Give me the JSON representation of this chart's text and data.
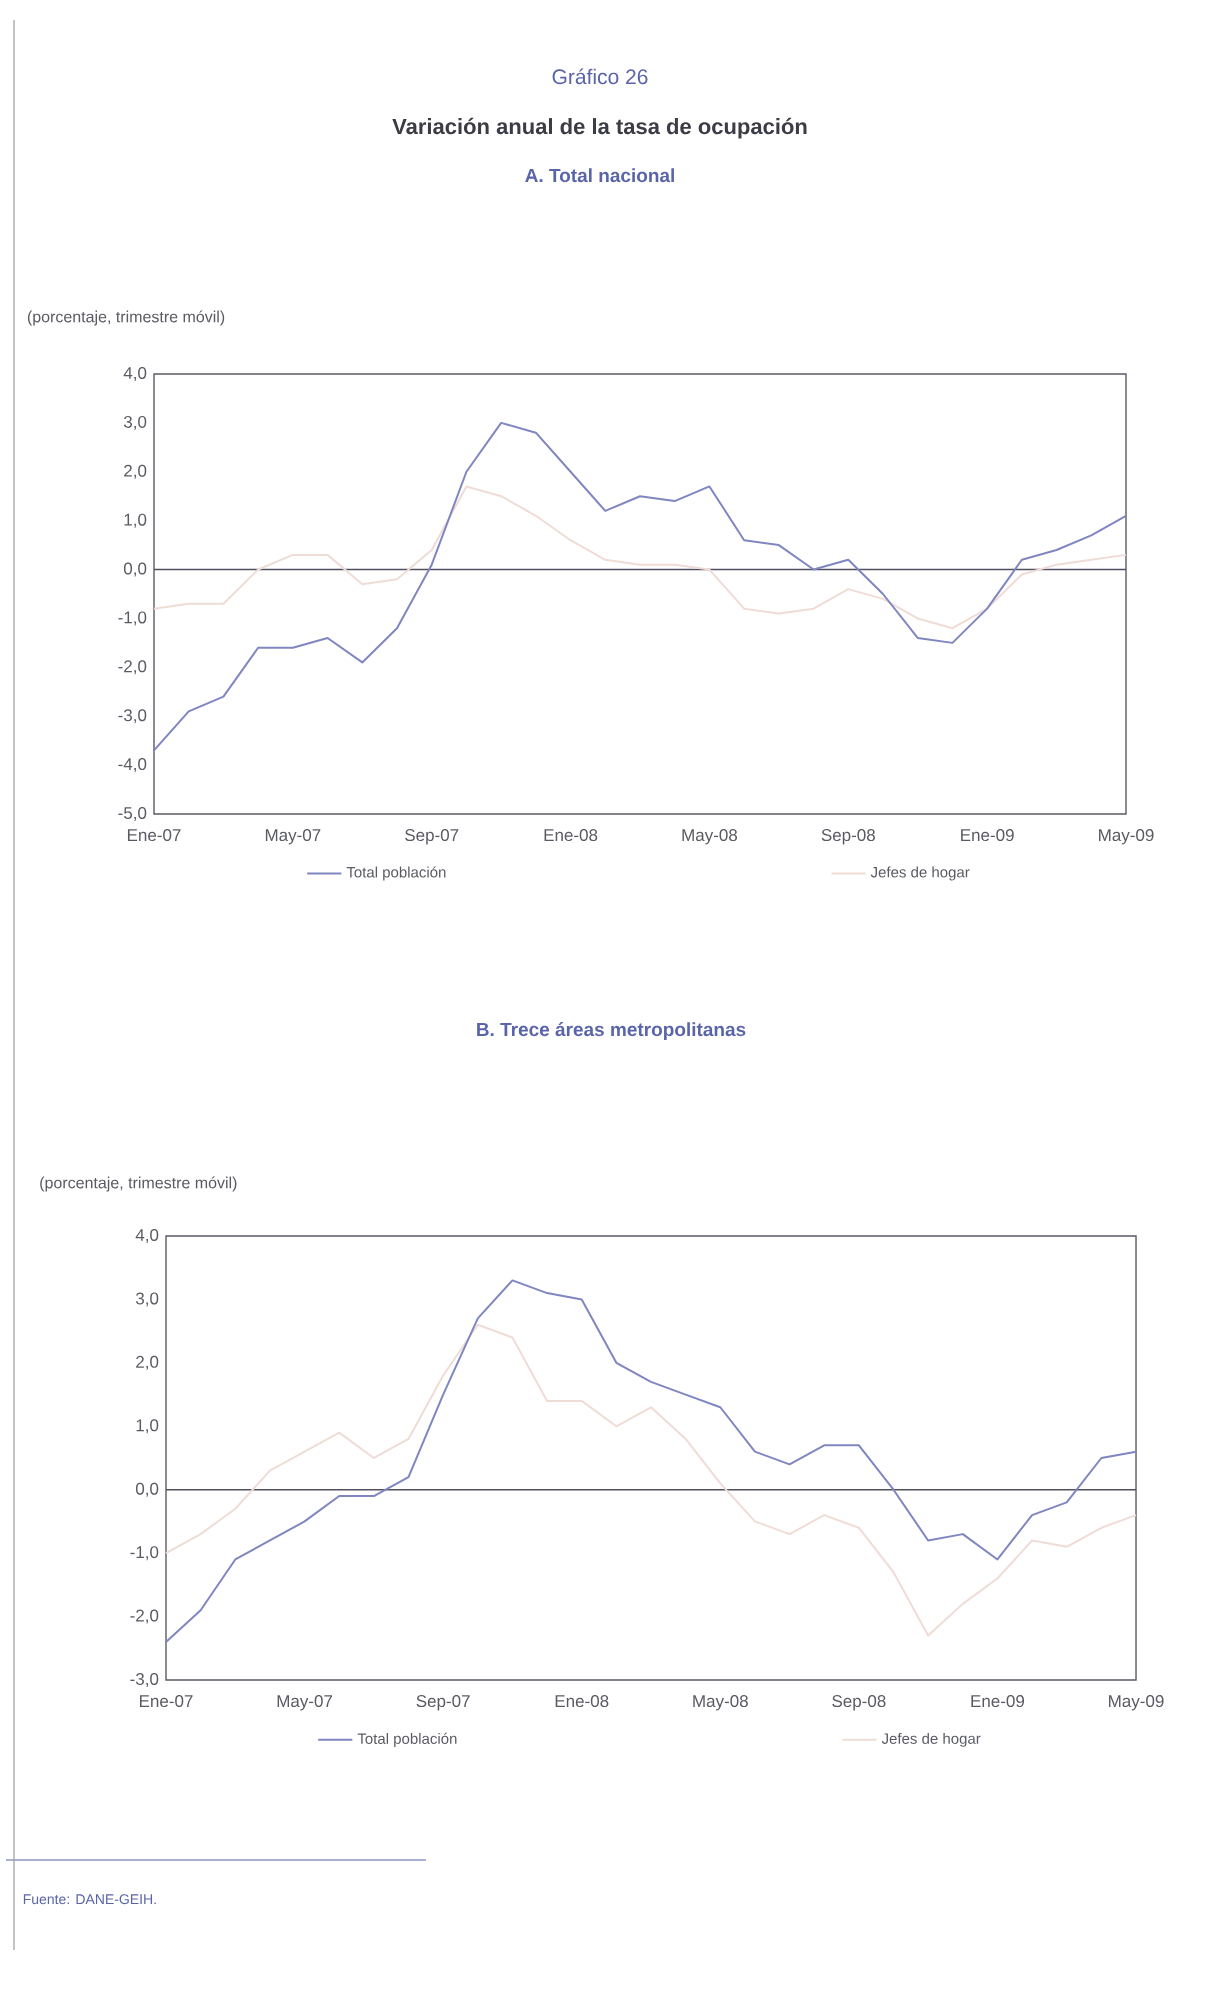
{
  "chart_data": [
    {
      "type": "line",
      "title": "Variación anual de la tasa de ocupación",
      "subtitle": "A. Total nacional",
      "ylabel": "(porcentaje, trimestre móvil)",
      "annotations": [
        "Gráfico 26"
      ],
      "categories": [
        "Ene-07",
        null,
        null,
        null,
        "May-07",
        null,
        null,
        null,
        "Sep-07",
        null,
        null,
        null,
        "Ene-08",
        null,
        null,
        null,
        "May-08",
        null,
        null,
        null,
        "Sep-08",
        null,
        null,
        null,
        "Ene-09",
        null,
        null,
        null,
        "May-09"
      ],
      "series": [
        {
          "name": "Total población",
          "color": "#7f86c0",
          "values": [
            -3.7,
            -2.9,
            -2.6,
            -1.6,
            -1.6,
            -1.4,
            -1.9,
            -1.2,
            0.1,
            2.0,
            3.0,
            2.8,
            2.0,
            1.2,
            1.5,
            1.4,
            1.7,
            0.6,
            0.5,
            0.0,
            0.2,
            -0.5,
            -1.4,
            -1.5,
            -0.8,
            0.2,
            0.4,
            0.7,
            1.1
          ]
        },
        {
          "name": "Jefes de hogar",
          "color": "#f0dcd6",
          "values": [
            -0.8,
            -0.7,
            -0.7,
            0.0,
            0.3,
            0.3,
            -0.3,
            -0.2,
            0.4,
            1.7,
            1.5,
            1.1,
            0.6,
            0.2,
            0.1,
            0.1,
            0.0,
            -0.8,
            -0.9,
            -0.8,
            -0.4,
            -0.6,
            -1.0,
            -1.2,
            -0.8,
            -0.1,
            0.1,
            0.2,
            0.3
          ]
        }
      ],
      "ylim": [
        -5,
        4
      ],
      "yticks": [
        {
          "value": 4,
          "label": "4,0"
        },
        {
          "value": 3,
          "label": "3,0"
        },
        {
          "value": 2,
          "label": "2,0"
        },
        {
          "value": 1,
          "label": "1,0"
        },
        {
          "value": 0,
          "label": "0,0"
        },
        {
          "value": -1,
          "label": "-1,0"
        },
        {
          "value": -2,
          "label": "-2,0"
        },
        {
          "value": -3,
          "label": "-3,0"
        },
        {
          "value": -4,
          "label": "-4,0"
        },
        {
          "value": -5,
          "label": "-5,0"
        }
      ],
      "ref_lines": [
        {
          "axis": "y",
          "value": 0,
          "color": "#505060"
        }
      ],
      "legend": "bottom",
      "grid": false
    },
    {
      "type": "line",
      "subtitle": "B. Trece áreas metropolitanas",
      "ylabel": "(porcentaje, trimestre móvil)",
      "annotations": [
        "Fuente: DANE-GEIH."
      ],
      "categories": [
        "Ene-07",
        null,
        null,
        null,
        "May-07",
        null,
        null,
        null,
        "Sep-07",
        null,
        null,
        null,
        "Ene-08",
        null,
        null,
        null,
        "May-08",
        null,
        null,
        null,
        "Sep-08",
        null,
        null,
        null,
        "Ene-09",
        null,
        null,
        null,
        "May-09"
      ],
      "series": [
        {
          "name": "Total población",
          "color": "#7f86c0",
          "values": [
            -2.4,
            -1.9,
            -1.1,
            -0.8,
            -0.5,
            -0.1,
            -0.1,
            0.2,
            1.5,
            2.7,
            3.3,
            3.1,
            3.0,
            2.0,
            1.7,
            1.5,
            1.3,
            0.6,
            0.4,
            0.7,
            0.7,
            0.0,
            -0.8,
            -0.7,
            -1.1,
            -0.4,
            -0.2,
            0.5,
            0.6
          ]
        },
        {
          "name": "Jefes de hogar",
          "color": "#f0dcd6",
          "values": [
            -1.0,
            -0.7,
            -0.3,
            0.3,
            0.6,
            0.9,
            0.5,
            0.8,
            1.8,
            2.6,
            2.4,
            1.4,
            1.4,
            1.0,
            1.3,
            0.8,
            0.1,
            -0.5,
            -0.7,
            -0.4,
            -0.6,
            -1.3,
            -2.3,
            -1.8,
            -1.4,
            -0.8,
            -0.9,
            -0.6,
            -0.4
          ]
        }
      ],
      "ylim": [
        -3,
        4
      ],
      "yticks": [
        {
          "value": 4,
          "label": "4,0"
        },
        {
          "value": 3,
          "label": "3,0"
        },
        {
          "value": 2,
          "label": "2,0"
        },
        {
          "value": 1,
          "label": "1,0"
        },
        {
          "value": 0,
          "label": "0,0"
        },
        {
          "value": -1,
          "label": "-1,0"
        },
        {
          "value": -2,
          "label": "-2,0"
        },
        {
          "value": -3,
          "label": "-3,0"
        }
      ],
      "ref_lines": [
        {
          "axis": "y",
          "value": 0,
          "color": "#505060"
        }
      ],
      "legend": "bottom",
      "grid": false
    }
  ]
}
